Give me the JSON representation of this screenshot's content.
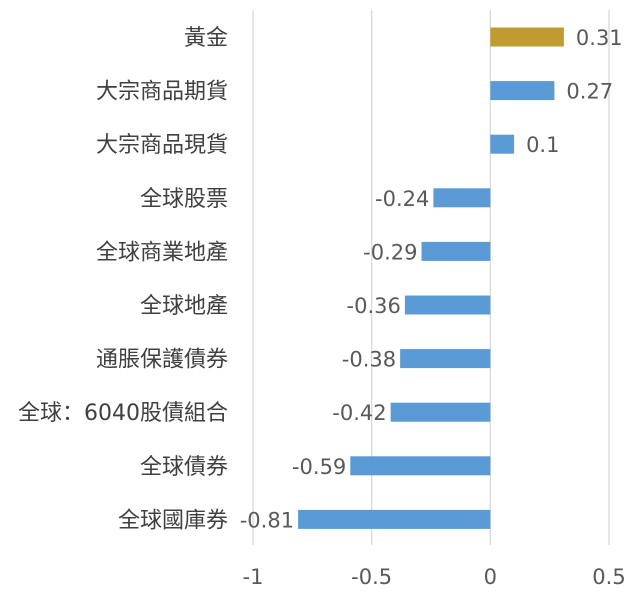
{
  "chart_data": {
    "type": "bar",
    "orientation": "horizontal",
    "title": "",
    "xlabel": "",
    "ylabel": "",
    "xlim": [
      -1,
      0.5
    ],
    "x_ticks": [
      -1,
      -0.5,
      0,
      0.5
    ],
    "tick_labels": [
      "-1",
      "-0.5",
      "0",
      "0.5"
    ],
    "grid": true,
    "legend": "none",
    "categories": [
      "黃金",
      "大宗商品期貨",
      "大宗商品現貨",
      "全球股票",
      "全球商業地產",
      "全球地產",
      "通脹保護債券",
      "全球：6040股債組合",
      "全球債券",
      "全球國庫券"
    ],
    "values": [
      0.31,
      0.27,
      0.1,
      -0.24,
      -0.29,
      -0.36,
      -0.38,
      -0.42,
      -0.59,
      -0.81
    ],
    "value_labels": [
      "0.31",
      "0.27",
      "0.1",
      "-0.24",
      "-0.29",
      "-0.36",
      "-0.38",
      "-0.42",
      "-0.59",
      "-0.81"
    ],
    "colors": {
      "default": "#5b9bd5",
      "highlight": "#bf9b30"
    },
    "highlight_index": 0
  }
}
